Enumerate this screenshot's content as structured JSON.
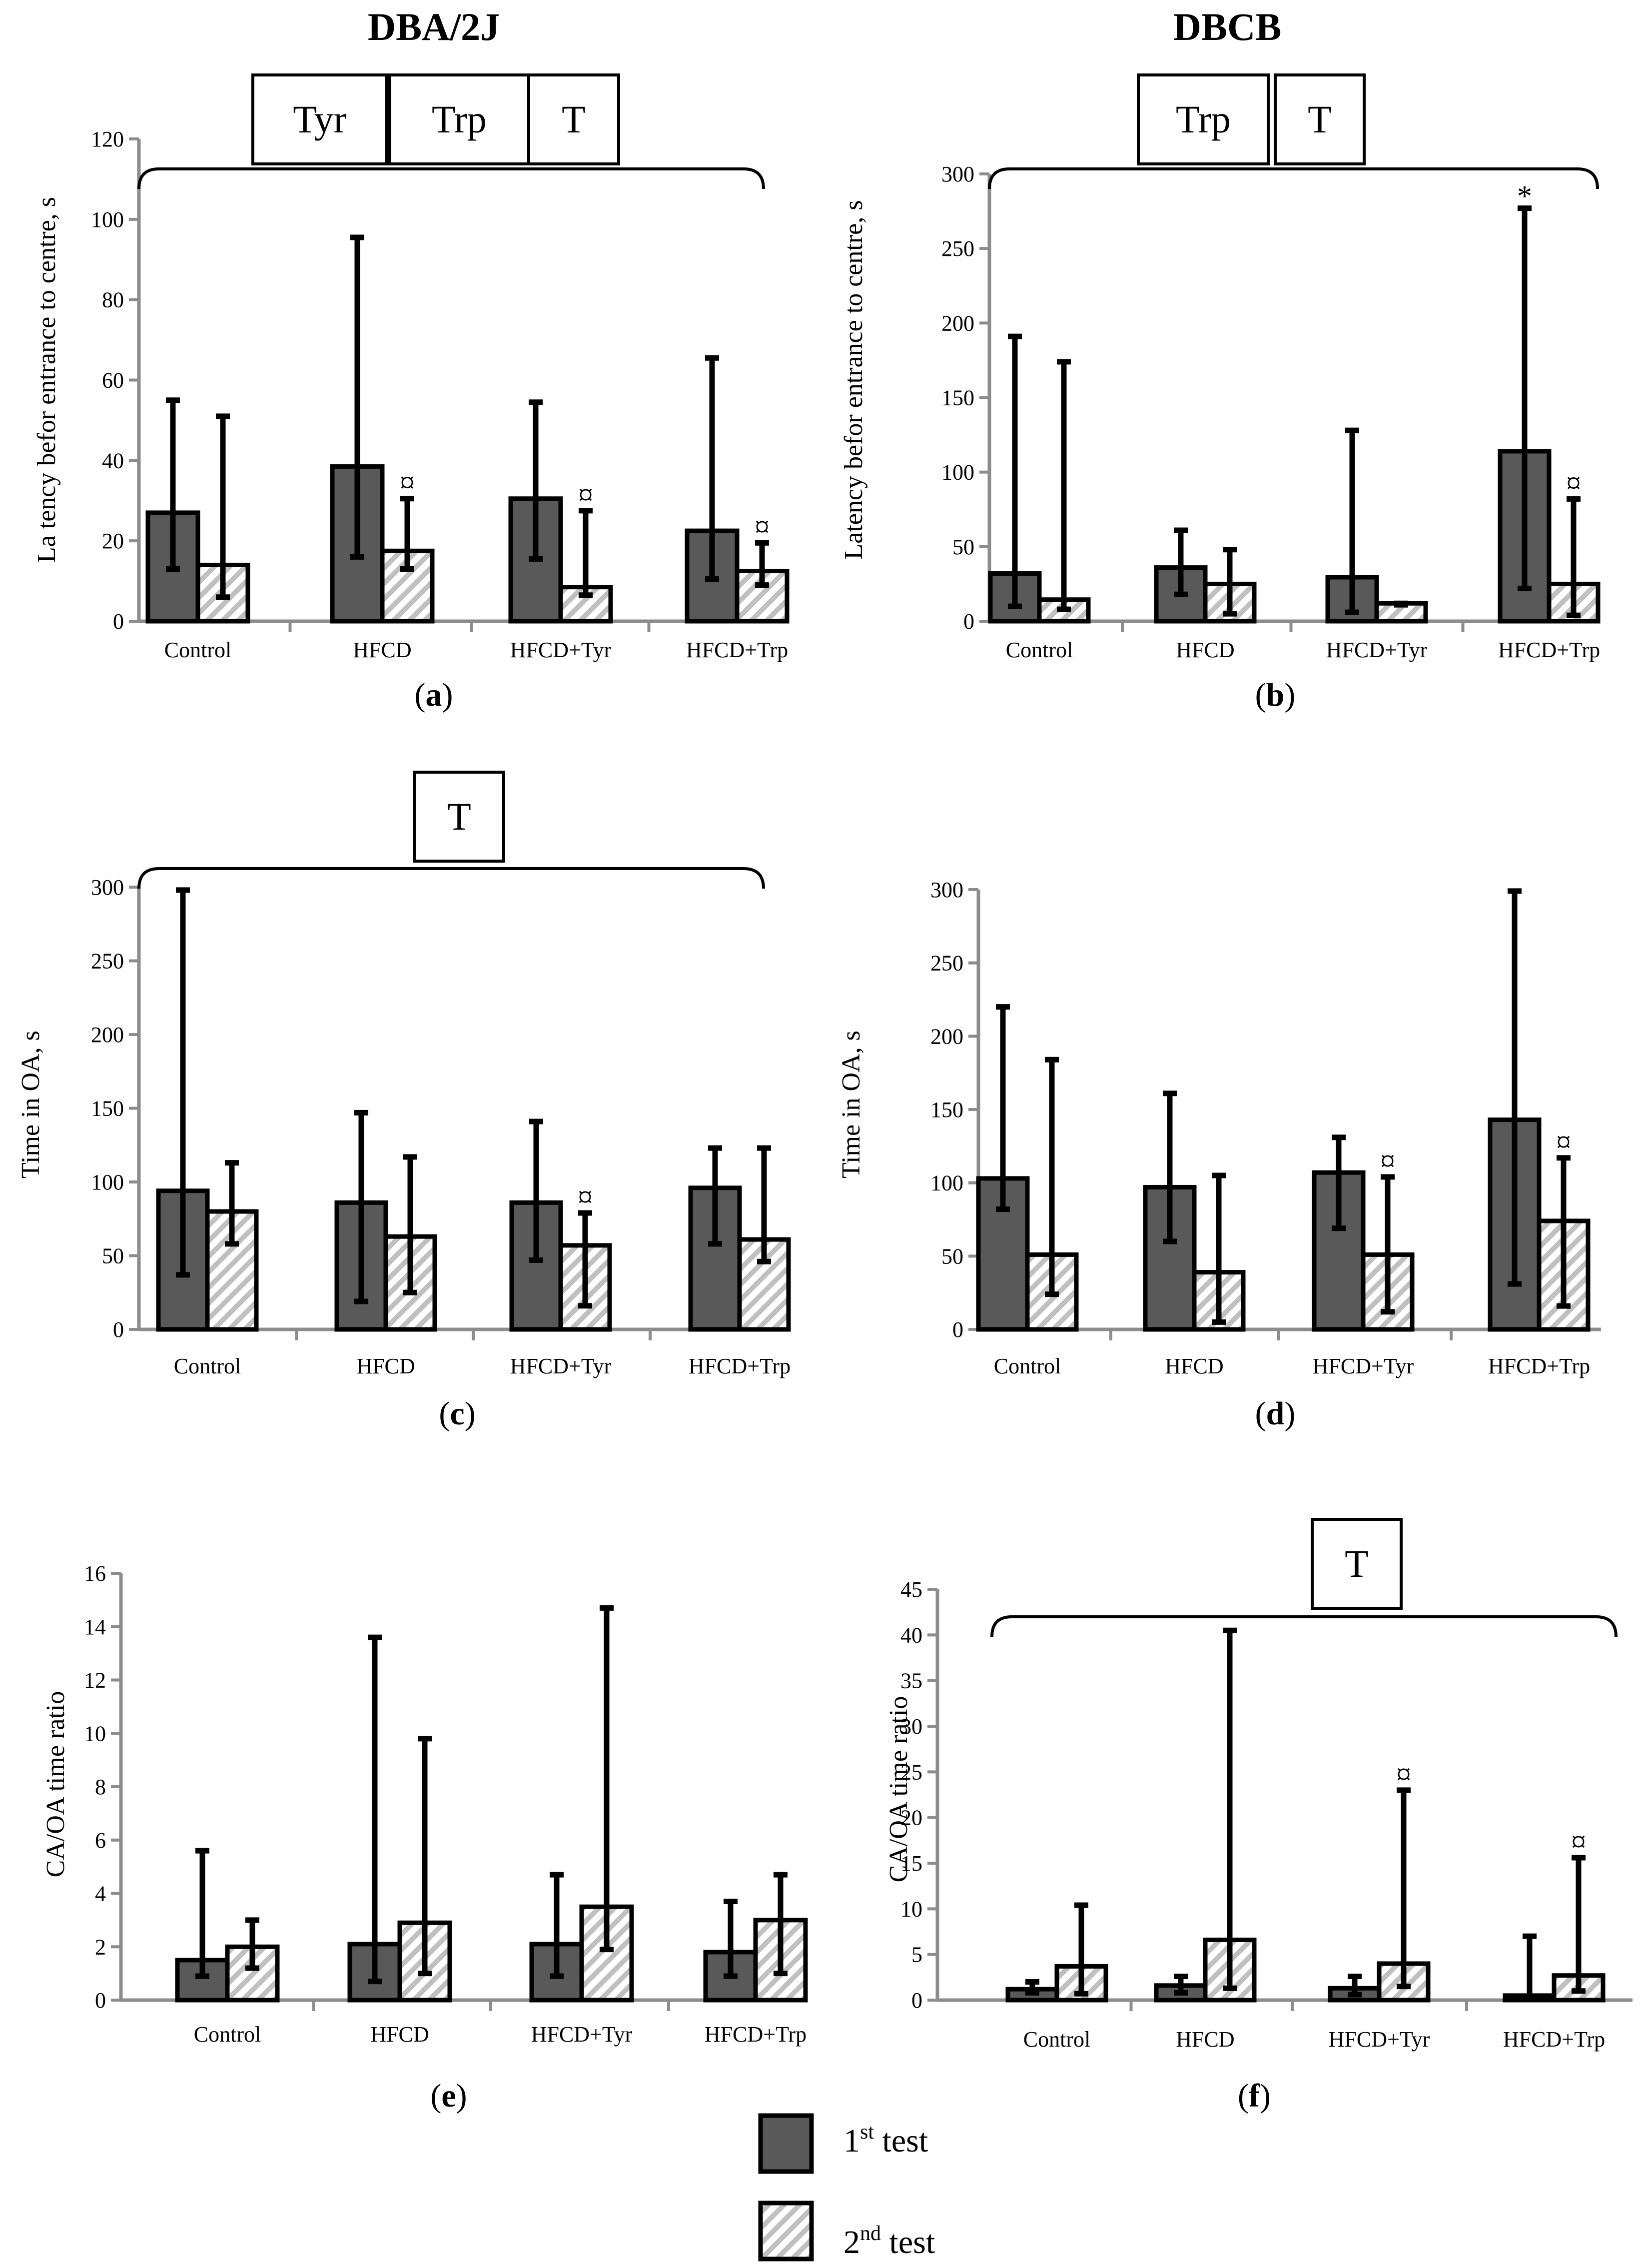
{
  "strain_titles": [
    "DBA/2J",
    "DBCB"
  ],
  "legend": {
    "first": {
      "main": "1",
      "sup": "st",
      "rest": " test"
    },
    "second": {
      "main": "2",
      "sup": "nd",
      "rest": " test"
    }
  },
  "colors": {
    "first_fill": "#595959",
    "second_fill": "#ffffff",
    "hatch": "#c0c0c0",
    "stroke": "#000000",
    "axis": "#8c8c8c"
  },
  "chart_data": [
    {
      "panel": "(a)",
      "panel_letter": "a",
      "type": "bar",
      "strain": "DBA/2J",
      "ylabel": "La tency befor entrance to centre, s",
      "ylim": [
        0,
        120
      ],
      "ytick_step": 20,
      "categories": [
        "Control",
        "HFCD",
        "HFCD+Tyr",
        "HFCD+Trp"
      ],
      "series": [
        {
          "name": "1st test",
          "values": [
            27,
            38.5,
            30.5,
            22.5
          ],
          "err_low": [
            13,
            16,
            15.5,
            10.5
          ],
          "err_high": [
            55,
            95.5,
            54.5,
            65.5
          ]
        },
        {
          "name": "2nd test",
          "values": [
            14,
            17.5,
            8.5,
            12.5
          ],
          "err_low": [
            6,
            13,
            6.5,
            9
          ],
          "err_high": [
            51,
            30.5,
            27.5,
            19.5
          ]
        }
      ],
      "significance": [
        "Tyr",
        "Trp",
        "T"
      ],
      "markers": [
        {
          "category": "HFCD",
          "series": 1,
          "symbol": "¤"
        },
        {
          "category": "HFCD+Tyr",
          "series": 1,
          "symbol": "¤"
        },
        {
          "category": "HFCD+Trp",
          "series": 1,
          "symbol": "¤"
        }
      ]
    },
    {
      "panel": "(b)",
      "panel_letter": "b",
      "type": "bar",
      "strain": "DBCB",
      "ylabel": "Latency befor entrance to centre, s",
      "ylim": [
        0,
        300
      ],
      "ytick_step": 50,
      "categories": [
        "Control",
        "HFCD",
        "HFCD+Tyr",
        "HFCD+Trp"
      ],
      "series": [
        {
          "name": "1st test",
          "values": [
            32,
            36,
            29.5,
            114
          ],
          "err_low": [
            10,
            18,
            6,
            22
          ],
          "err_high": [
            191,
            61,
            128,
            277
          ]
        },
        {
          "name": "2nd test",
          "values": [
            14.5,
            25,
            12,
            25
          ],
          "err_low": [
            8,
            5,
            11,
            4
          ],
          "err_high": [
            174,
            48,
            12,
            82
          ]
        }
      ],
      "significance": [
        "Trp",
        "T"
      ],
      "markers": [
        {
          "category": "HFCD+Trp",
          "series": 0,
          "symbol": "*"
        },
        {
          "category": "HFCD+Trp",
          "series": 1,
          "symbol": "¤"
        }
      ]
    },
    {
      "panel": "(c)",
      "panel_letter": "c",
      "type": "bar",
      "strain": "DBA/2J",
      "ylabel": "Time in OA, s",
      "ylim": [
        0,
        300
      ],
      "ytick_step": 50,
      "categories": [
        "Control",
        "HFCD",
        "HFCD+Tyr",
        "HFCD+Trp"
      ],
      "series": [
        {
          "name": "1st test",
          "values": [
            94,
            86,
            86,
            96
          ],
          "err_low": [
            37,
            19,
            47,
            58
          ],
          "err_high": [
            298,
            147,
            141,
            123
          ]
        },
        {
          "name": "2nd test",
          "values": [
            80,
            63,
            57,
            61
          ],
          "err_low": [
            58,
            25,
            16,
            46
          ],
          "err_high": [
            113,
            117,
            79,
            123
          ]
        }
      ],
      "significance": [
        "T"
      ],
      "markers": [
        {
          "category": "HFCD+Tyr",
          "series": 1,
          "symbol": "¤"
        }
      ]
    },
    {
      "panel": "(d)",
      "panel_letter": "d",
      "type": "bar",
      "strain": "DBCB",
      "ylabel": "Time in OA, s",
      "ylim": [
        0,
        300
      ],
      "ytick_step": 50,
      "categories": [
        "Control",
        "HFCD",
        "HFCD+Tyr",
        "HFCD+Trp"
      ],
      "series": [
        {
          "name": "1st test",
          "values": [
            103,
            97,
            107,
            143
          ],
          "err_low": [
            82,
            60,
            69,
            31
          ],
          "err_high": [
            220,
            161,
            131,
            299
          ]
        },
        {
          "name": "2nd test",
          "values": [
            51,
            39,
            51,
            74
          ],
          "err_low": [
            24,
            5,
            12,
            16
          ],
          "err_high": [
            184,
            105,
            104,
            117
          ]
        }
      ],
      "significance": [],
      "markers": [
        {
          "category": "HFCD+Tyr",
          "series": 1,
          "symbol": "¤"
        },
        {
          "category": "HFCD+Trp",
          "series": 1,
          "symbol": "¤"
        }
      ]
    },
    {
      "panel": "(e)",
      "panel_letter": "e",
      "type": "bar",
      "strain": "DBA/2J",
      "ylabel": "CA/OA time ratio",
      "ylim": [
        0,
        16
      ],
      "ytick_step": 2,
      "categories": [
        "Control",
        "HFCD",
        "HFCD+Tyr",
        "HFCD+Trp"
      ],
      "series": [
        {
          "name": "1st test",
          "values": [
            1.5,
            2.1,
            2.1,
            1.8
          ],
          "err_low": [
            0.9,
            0.7,
            0.9,
            0.9
          ],
          "err_high": [
            5.6,
            13.6,
            4.7,
            3.7
          ]
        },
        {
          "name": "2nd test",
          "values": [
            2.0,
            2.9,
            3.5,
            3.0
          ],
          "err_low": [
            1.2,
            1.0,
            1.9,
            1.0
          ],
          "err_high": [
            3.0,
            9.8,
            14.7,
            4.7
          ]
        }
      ],
      "significance": [],
      "markers": []
    },
    {
      "panel": "(f)",
      "panel_letter": "f",
      "type": "bar",
      "strain": "DBCB",
      "ylabel": "CA/OA time ratio",
      "ylim": [
        0,
        45
      ],
      "ytick_step": 5,
      "categories": [
        "Control",
        "HFCD",
        "HFCD+Tyr",
        "HFCD+Trp"
      ],
      "series": [
        {
          "name": "1st test",
          "values": [
            1.2,
            1.6,
            1.3,
            0.5
          ],
          "err_low": [
            0.8,
            0.8,
            0.6,
            0.2
          ],
          "err_high": [
            2.0,
            2.6,
            2.6,
            7.0
          ]
        },
        {
          "name": "2nd test",
          "values": [
            3.7,
            6.6,
            4.0,
            2.7
          ],
          "err_low": [
            0.7,
            1.3,
            1.5,
            1.0
          ],
          "err_high": [
            10.4,
            40.5,
            23.0,
            15.6
          ]
        }
      ],
      "significance": [
        "T"
      ],
      "markers": [
        {
          "category": "HFCD+Tyr",
          "series": 1,
          "symbol": "¤"
        },
        {
          "category": "HFCD+Trp",
          "series": 1,
          "symbol": "¤"
        }
      ]
    }
  ]
}
